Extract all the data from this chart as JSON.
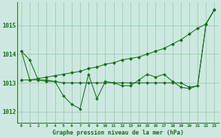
{
  "bg_color": "#cce8e0",
  "grid_color": "#99ccaa",
  "line_color": "#1a6e1a",
  "marker_color": "#1a6e1a",
  "title": "Graphe pression niveau de la mer (hPa)",
  "ylim": [
    1011.6,
    1015.8
  ],
  "xlim": [
    -0.5,
    23.5
  ],
  "yticks": [
    1012,
    1013,
    1014,
    1015
  ],
  "xticks": [
    0,
    1,
    2,
    3,
    4,
    5,
    6,
    7,
    8,
    9,
    10,
    11,
    12,
    13,
    14,
    15,
    16,
    17,
    18,
    19,
    20,
    21,
    22,
    23
  ],
  "series_wavy": [
    1014.1,
    1013.8,
    1013.1,
    1013.1,
    1013.05,
    1012.55,
    1012.25,
    1012.1,
    1013.3,
    1012.45,
    1013.05,
    1013.0,
    1012.9,
    1012.9,
    1013.1,
    1013.3,
    1013.2,
    1013.3,
    1013.05,
    1012.85,
    1012.8,
    1012.9,
    1015.05,
    1015.55
  ],
  "series_flat": [
    1014.1,
    1013.1,
    1013.1,
    1013.05,
    1013.05,
    1013.0,
    1013.0,
    1013.0,
    1013.0,
    1013.0,
    1013.0,
    1013.0,
    1013.0,
    1013.0,
    1013.0,
    1013.0,
    1013.0,
    1013.0,
    1013.0,
    1013.0,
    1012.85,
    1012.9,
    1015.05,
    1015.55
  ],
  "series_diagonal": [
    1013.1,
    1013.1,
    1013.15,
    1013.2,
    1013.25,
    1013.3,
    1013.35,
    1013.4,
    1013.5,
    1013.55,
    1013.65,
    1013.7,
    1013.8,
    1013.85,
    1013.9,
    1014.0,
    1014.1,
    1014.2,
    1014.35,
    1014.5,
    1014.7,
    1014.9,
    1015.05,
    1015.55
  ]
}
